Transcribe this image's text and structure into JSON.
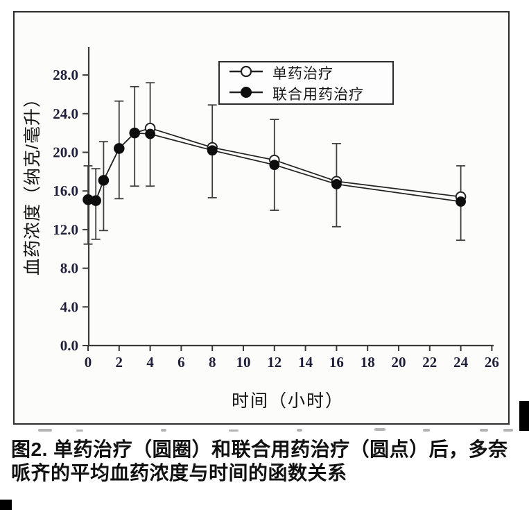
{
  "figure": {
    "caption_line1": "图2. 单药治疗（圆圈）和联合用药治疗（圆点）后，多奈",
    "caption_line2": "哌齐的平均血药浓度与时间的函数关系"
  },
  "chart_data": {
    "type": "line",
    "title": "",
    "xlabel": "时间（小时）",
    "ylabel": "血药浓度（纳克/毫升）",
    "x": [
      0,
      0.5,
      1,
      2,
      3,
      4,
      8,
      12,
      16,
      24
    ],
    "series": [
      {
        "name": "单药治疗",
        "marker": "open-circle",
        "values": [
          15.1,
          15.0,
          17.1,
          20.4,
          22.0,
          22.5,
          20.5,
          19.2,
          17.0,
          15.4
        ]
      },
      {
        "name": "联合用药治疗",
        "marker": "filled-circle",
        "values": [
          15.1,
          15.0,
          17.1,
          20.4,
          22.0,
          21.9,
          20.2,
          18.7,
          16.7,
          14.9
        ]
      }
    ],
    "error_bars": {
      "x": [
        0,
        0.5,
        1,
        2,
        3,
        4,
        8,
        12,
        16,
        24
      ],
      "low": [
        10.5,
        11.0,
        11.9,
        15.2,
        16.5,
        16.5,
        15.3,
        14.0,
        12.3,
        10.9
      ],
      "high": [
        18.6,
        18.3,
        21.1,
        25.3,
        26.8,
        27.2,
        24.9,
        23.4,
        20.9,
        18.6
      ]
    },
    "x_ticks": [
      "0",
      "2",
      "4",
      "6",
      "8",
      "10",
      "12",
      "14",
      "16",
      "18",
      "20",
      "22",
      "24",
      "26"
    ],
    "y_ticks": [
      "0.0",
      "4.0",
      "8.0",
      "12.0",
      "16.0",
      "20.0",
      "24.0",
      "28.0"
    ],
    "xlim": [
      0,
      26
    ],
    "ylim": [
      0,
      30.8
    ],
    "grid": false,
    "legend_position": "upper-center-inside",
    "colors": {
      "line": "#222222",
      "axis": "#3a3a3a",
      "error_bar": "#3d3d3d",
      "tick_label": "#1e1e38"
    }
  }
}
